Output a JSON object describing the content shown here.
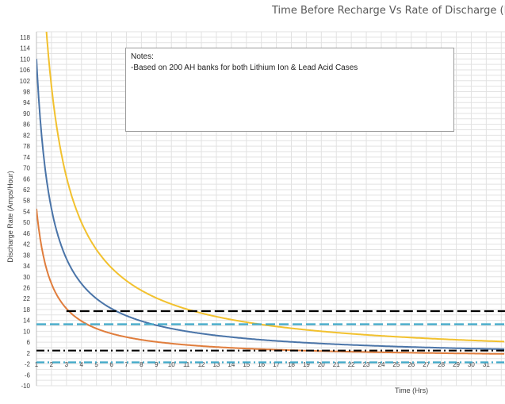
{
  "chart_data": {
    "type": "line",
    "title": "Time Before Recharge Vs Rate of Discharge (Hous",
    "xlabel": "Time (Hrs)",
    "ylabel": "Discharge Rate (Amps/Hour)",
    "xlim": [
      1,
      32
    ],
    "ylim": [
      -10,
      120
    ],
    "x_ticks": [
      "1",
      "2",
      "3",
      "4",
      "5",
      "6",
      "7",
      "8",
      "9",
      "10",
      "11",
      "12",
      "13",
      "14",
      "15",
      "16",
      "17",
      "18",
      "19",
      "20",
      "21",
      "22",
      "23",
      "24",
      "25",
      "26",
      "27",
      "28",
      "29",
      "30",
      "31"
    ],
    "y_ticks": [
      "118",
      "114",
      "110",
      "106",
      "102",
      "98",
      "94",
      "90",
      "86",
      "82",
      "78",
      "74",
      "70",
      "66",
      "62",
      "58",
      "54",
      "50",
      "46",
      "42",
      "38",
      "34",
      "30",
      "26",
      "22",
      "18",
      "14",
      "10",
      "6",
      "2",
      "-2",
      "-6",
      "-10"
    ],
    "y_tick_values": [
      118,
      114,
      110,
      106,
      102,
      98,
      94,
      90,
      86,
      82,
      78,
      74,
      70,
      66,
      62,
      58,
      54,
      50,
      46,
      42,
      38,
      34,
      30,
      26,
      22,
      18,
      14,
      10,
      6,
      2,
      -2,
      -6,
      -10
    ],
    "grid": true,
    "series": [
      {
        "color": "#f2c12e",
        "style": "solid",
        "formula": "200/x",
        "x": [
          1.65,
          2,
          3,
          4,
          5,
          6,
          7,
          8,
          9,
          10,
          12,
          14,
          16,
          18,
          20,
          22,
          24,
          26,
          28,
          30,
          32
        ],
        "values": [
          121.2,
          100,
          66.7,
          50,
          40,
          33.3,
          28.6,
          25,
          22.2,
          20,
          16.7,
          14.3,
          12.5,
          11.1,
          10,
          9.1,
          8.3,
          7.7,
          7.1,
          6.7,
          6.25
        ]
      },
      {
        "color": "#4a74a8",
        "style": "solid",
        "formula": "110/x",
        "x": [
          1,
          2,
          3,
          4,
          5,
          6,
          7,
          8,
          9,
          10,
          12,
          14,
          16,
          18,
          20,
          22,
          24,
          26,
          28,
          30,
          32
        ],
        "values": [
          110,
          55,
          36.7,
          27.5,
          22,
          18.3,
          15.7,
          13.8,
          12.2,
          11,
          9.2,
          7.9,
          6.9,
          6.1,
          5.5,
          5,
          4.6,
          4.2,
          3.9,
          3.7,
          3.4
        ]
      },
      {
        "color": "#e07d3c",
        "style": "solid",
        "formula": "55/x",
        "x": [
          1,
          2,
          3,
          4,
          5,
          6,
          7,
          8,
          9,
          10,
          12,
          14,
          16,
          18,
          20,
          22,
          24,
          26,
          28,
          30,
          32
        ],
        "values": [
          55,
          27.5,
          18.3,
          13.75,
          11,
          9.2,
          7.9,
          6.9,
          6.1,
          5.5,
          4.6,
          3.9,
          3.4,
          3.1,
          2.75,
          2.5,
          2.3,
          2.1,
          1.96,
          1.83,
          1.72
        ]
      },
      {
        "color": "#000000",
        "style": "dash",
        "x": [
          3,
          32
        ],
        "values": [
          17.4,
          17.4
        ]
      },
      {
        "color": "#3fa8c8",
        "style": "dash",
        "x": [
          1,
          32
        ],
        "values": [
          12.6,
          12.6
        ]
      },
      {
        "color": "#000000",
        "style": "dashdot",
        "x": [
          1,
          32
        ],
        "values": [
          2.9,
          2.9
        ]
      },
      {
        "color": "#3fa8c8",
        "style": "dashdot",
        "x": [
          1,
          32
        ],
        "values": [
          -1.4,
          -1.4
        ]
      }
    ],
    "notes": {
      "heading": "Notes:",
      "line": "-Based on 200 AH banks for both Lithium Ion & Lead Acid Cases"
    }
  }
}
